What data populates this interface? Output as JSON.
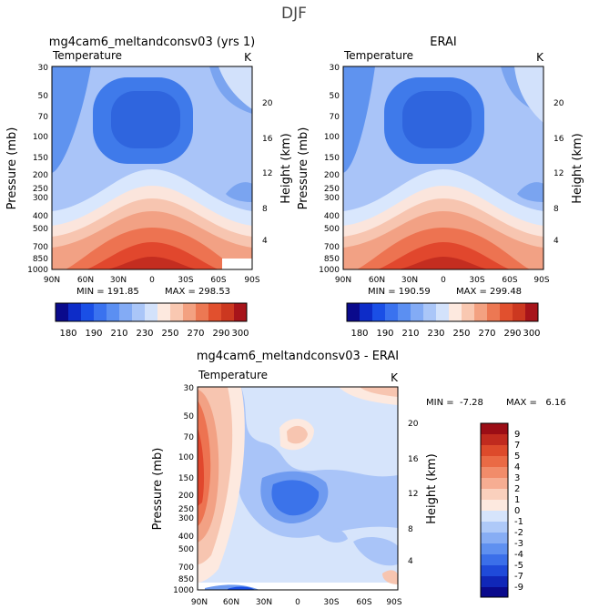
{
  "season_title": "DJF",
  "chart_data": [
    {
      "type": "contour",
      "title": "mg4cam6_meltandconsv03 (yrs 1)",
      "variable": "Temperature",
      "units": "K",
      "ylabel": "Pressure (mb)",
      "ylabel_right": "Height (km)",
      "x_ticks": [
        "90N",
        "60N",
        "30N",
        "0",
        "30S",
        "60S",
        "90S"
      ],
      "y_ticks": [
        "30",
        "50",
        "70",
        "100",
        "150",
        "200",
        "250",
        "300",
        "400",
        "500",
        "700",
        "850",
        "1000"
      ],
      "height_ticks": [
        "20",
        "16",
        "12",
        "8",
        "4"
      ],
      "min_label": "MIN = 191.85",
      "max_label": "MAX = 298.53",
      "min": 191.85,
      "max": 298.53,
      "colorbar_labels": [
        "180",
        "190",
        "210",
        "230",
        "250",
        "270",
        "290",
        "300"
      ]
    },
    {
      "type": "contour",
      "title": "ERAI",
      "variable": "Temperature",
      "units": "K",
      "ylabel": "Pressure (mb)",
      "ylabel_right": "Height (km)",
      "x_ticks": [
        "90N",
        "60N",
        "30N",
        "0",
        "30S",
        "60S",
        "90S"
      ],
      "y_ticks": [
        "30",
        "50",
        "70",
        "100",
        "150",
        "200",
        "250",
        "300",
        "400",
        "500",
        "700",
        "850",
        "1000"
      ],
      "height_ticks": [
        "20",
        "16",
        "12",
        "8",
        "4"
      ],
      "min_label": "MIN = 190.59",
      "max_label": "MAX = 299.48",
      "min": 190.59,
      "max": 299.48,
      "colorbar_labels": [
        "180",
        "190",
        "210",
        "230",
        "250",
        "270",
        "290",
        "300"
      ]
    },
    {
      "type": "contour",
      "title": "mg4cam6_meltandconsv03 - ERAI",
      "variable": "Temperature",
      "units": "K",
      "ylabel": "Pressure (mb)",
      "ylabel_right": "Height (km)",
      "x_ticks": [
        "90N",
        "60N",
        "30N",
        "0",
        "30S",
        "60S",
        "90S"
      ],
      "y_ticks": [
        "30",
        "50",
        "70",
        "100",
        "150",
        "200",
        "250",
        "300",
        "400",
        "500",
        "700",
        "850",
        "1000"
      ],
      "height_ticks": [
        "20",
        "16",
        "12",
        "8",
        "4"
      ],
      "min_label": "MIN =  -7.28",
      "max_label": "MAX =   6.16",
      "min": -7.28,
      "max": 6.16,
      "colorbar_labels": [
        "9",
        "7",
        "5",
        "4",
        "3",
        "2",
        "1",
        "0",
        "-1",
        "-2",
        "-3",
        "-4",
        "-5",
        "-7",
        "-9"
      ]
    }
  ]
}
